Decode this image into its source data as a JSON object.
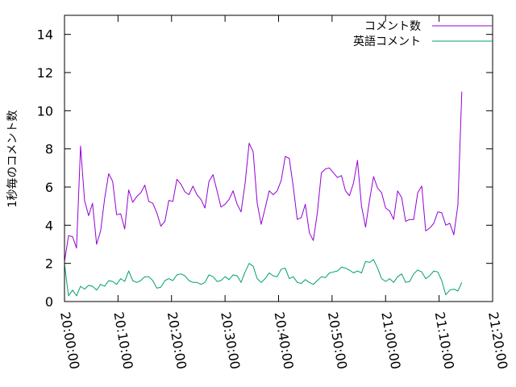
{
  "chart_data": {
    "type": "line",
    "ylabel": "1秒毎のコメント数",
    "ylim": [
      0,
      15
    ],
    "yticks": [
      "0",
      "2",
      "4",
      "6",
      "8",
      "10",
      "12",
      "14"
    ],
    "xticks": [
      "20:00:00",
      "20:10:00",
      "20:20:00",
      "20:30:00",
      "20:40:00",
      "20:50:00",
      "21:00:00",
      "21:10:00",
      "21:20:00"
    ],
    "x_start": "20:00:00",
    "x_end": "21:20:00",
    "sample_interval_s": 45,
    "legend_position": "top-right",
    "series": [
      {
        "name": "コメント数",
        "color": "#9400d3",
        "values": [
          2.1,
          3.45,
          3.4,
          2.8,
          8.15,
          5.3,
          4.5,
          5.15,
          3.0,
          3.7,
          5.4,
          6.7,
          6.3,
          4.55,
          4.6,
          3.8,
          5.85,
          5.2,
          5.5,
          5.7,
          6.1,
          5.25,
          5.15,
          4.65,
          3.95,
          4.2,
          5.3,
          5.25,
          6.4,
          6.15,
          5.75,
          5.6,
          6.05,
          5.6,
          5.35,
          4.9,
          6.3,
          6.65,
          5.8,
          4.95,
          5.1,
          5.35,
          5.8,
          5.1,
          4.7,
          6.2,
          8.3,
          7.85,
          5.15,
          4.05,
          4.9,
          5.8,
          5.6,
          5.8,
          6.35,
          7.6,
          7.5,
          6.0,
          4.3,
          4.4,
          5.1,
          3.6,
          3.2,
          4.65,
          6.75,
          6.95,
          7.0,
          6.75,
          6.5,
          6.6,
          5.8,
          5.55,
          6.2,
          7.4,
          5.0,
          3.9,
          5.3,
          6.55,
          5.95,
          5.7,
          4.9,
          4.75,
          4.3,
          5.8,
          5.45,
          4.2,
          4.3,
          4.3,
          5.7,
          6.05,
          3.7,
          3.85,
          4.1,
          4.7,
          4.65,
          4.0,
          4.1,
          3.5,
          5.05,
          11.0
        ]
      },
      {
        "name": "英語コメント",
        "color": "#009e73",
        "values": [
          1.95,
          0.3,
          0.6,
          0.3,
          0.8,
          0.65,
          0.85,
          0.8,
          0.6,
          0.9,
          0.8,
          1.1,
          1.05,
          0.9,
          1.2,
          1.05,
          1.6,
          1.1,
          1.0,
          1.1,
          1.3,
          1.3,
          1.1,
          0.7,
          0.75,
          1.1,
          1.2,
          1.1,
          1.4,
          1.45,
          1.35,
          1.1,
          1.0,
          1.0,
          0.9,
          1.0,
          1.4,
          1.3,
          1.05,
          1.1,
          1.3,
          1.15,
          1.4,
          1.35,
          1.0,
          1.55,
          2.0,
          1.85,
          1.2,
          1.0,
          1.2,
          1.5,
          1.35,
          1.3,
          1.7,
          1.75,
          1.2,
          1.3,
          1.0,
          0.95,
          1.15,
          1.0,
          0.9,
          1.1,
          1.3,
          1.25,
          1.5,
          1.55,
          1.6,
          1.8,
          1.75,
          1.65,
          1.5,
          1.6,
          1.5,
          2.1,
          2.05,
          2.2,
          1.75,
          1.2,
          1.05,
          1.2,
          1.0,
          1.3,
          1.45,
          1.0,
          1.05,
          1.45,
          1.65,
          1.55,
          1.2,
          1.35,
          1.6,
          1.55,
          1.1,
          0.35,
          0.6,
          0.65,
          0.55,
          1.0
        ]
      }
    ]
  }
}
